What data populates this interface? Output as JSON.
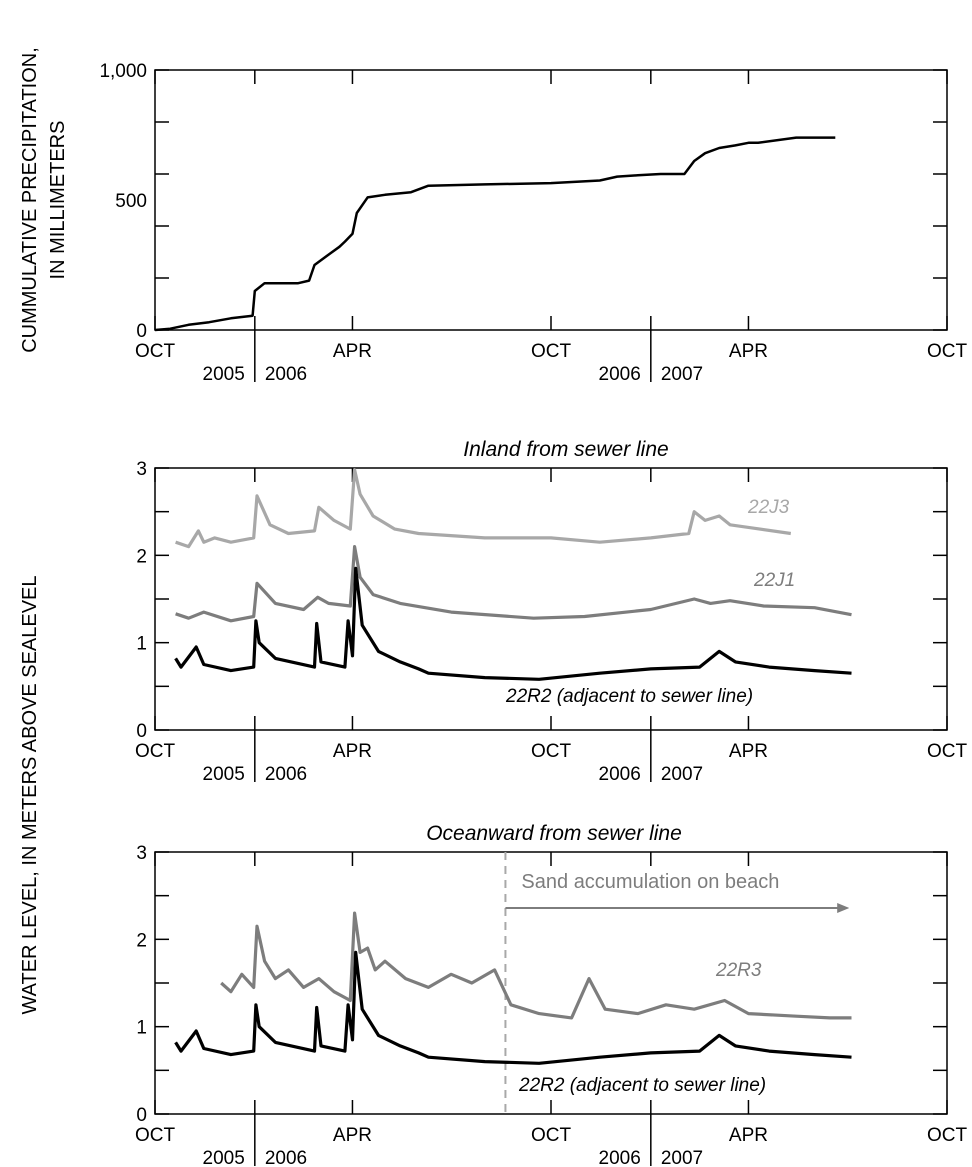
{
  "colors": {
    "black": "#000000",
    "gray_dark": "#6e6e6e",
    "gray_mid": "#7d7d7d",
    "gray_light": "#a8a8a8"
  },
  "ylabel_top": [
    "CUMMULATIVE PRECIPITATION,",
    "IN MILLIMETERS"
  ],
  "ylabel_shared": "WATER LEVEL, IN METERS ABOVE SEALEVEL",
  "chart_data": [
    {
      "type": "line",
      "title": "",
      "ylim": [
        0,
        1000
      ],
      "yticks": [
        0,
        500,
        1000
      ],
      "ytick_labels": [
        "0",
        "500",
        "1,000"
      ],
      "xlim": [
        "2005-10-01",
        "2007-10-01"
      ],
      "xtick_labels": [
        "OCT",
        "APR",
        "OCT",
        "APR",
        "OCT"
      ],
      "year_labels": [
        "2005",
        "2006",
        "2006",
        "2007"
      ],
      "series": [
        {
          "color": "#000000",
          "x": [
            "2005-10-01",
            "2005-10-15",
            "2005-11-01",
            "2005-11-20",
            "2005-12-10",
            "2005-12-30",
            "2006-01-01",
            "2006-01-10",
            "2006-02-10",
            "2006-02-20",
            "2006-02-25",
            "2006-03-10",
            "2006-03-20",
            "2006-03-25",
            "2006-04-01",
            "2006-04-05",
            "2006-04-15",
            "2006-05-01",
            "2006-05-25",
            "2006-06-10",
            "2006-08-01",
            "2006-10-01",
            "2006-11-15",
            "2006-12-01",
            "2006-12-20",
            "2007-01-10",
            "2007-02-01",
            "2007-02-10",
            "2007-02-20",
            "2007-03-05",
            "2007-03-20",
            "2007-04-01",
            "2007-04-10",
            "2007-05-15",
            "2007-06-20"
          ],
          "y": [
            0,
            5,
            20,
            30,
            45,
            55,
            150,
            180,
            180,
            190,
            250,
            290,
            320,
            340,
            370,
            450,
            510,
            520,
            530,
            555,
            560,
            565,
            575,
            590,
            595,
            600,
            600,
            650,
            680,
            700,
            710,
            720,
            720,
            740,
            740
          ]
        }
      ]
    },
    {
      "type": "line",
      "title": "Inland from sewer line",
      "ylim": [
        0,
        3
      ],
      "yticks": [
        0,
        1,
        2,
        3
      ],
      "ytick_labels": [
        "0",
        "1",
        "2",
        "3"
      ],
      "xlim": [
        "2005-10-01",
        "2007-10-01"
      ],
      "xtick_labels": [
        "OCT",
        "APR",
        "OCT",
        "APR",
        "OCT"
      ],
      "year_labels": [
        "2005",
        "2006",
        "2006",
        "2007"
      ],
      "series": [
        {
          "name": "22J3",
          "color": "#a8a8a8",
          "x": [
            "2005-10-20",
            "2005-11-01",
            "2005-11-10",
            "2005-11-15",
            "2005-11-25",
            "2005-12-10",
            "2005-12-31",
            "2006-01-03",
            "2006-01-15",
            "2006-02-01",
            "2006-02-25",
            "2006-03-01",
            "2006-03-15",
            "2006-03-30",
            "2006-04-03",
            "2006-04-08",
            "2006-04-20",
            "2006-05-10",
            "2006-06-01",
            "2006-08-01",
            "2006-10-01",
            "2006-11-15",
            "2007-01-01",
            "2007-02-05",
            "2007-02-10",
            "2007-02-20",
            "2007-03-05",
            "2007-03-15",
            "2007-04-01",
            "2007-05-10"
          ],
          "y": [
            2.15,
            2.1,
            2.28,
            2.15,
            2.2,
            2.15,
            2.2,
            2.68,
            2.35,
            2.25,
            2.28,
            2.55,
            2.4,
            2.3,
            2.98,
            2.7,
            2.45,
            2.3,
            2.25,
            2.2,
            2.2,
            2.15,
            2.2,
            2.25,
            2.5,
            2.4,
            2.45,
            2.35,
            2.32,
            2.25
          ]
        },
        {
          "name": "22J1",
          "color": "#7d7d7d",
          "x": [
            "2005-10-20",
            "2005-11-01",
            "2005-11-15",
            "2005-12-10",
            "2005-12-31",
            "2006-01-03",
            "2006-01-20",
            "2006-02-15",
            "2006-02-28",
            "2006-03-10",
            "2006-03-30",
            "2006-04-03",
            "2006-04-08",
            "2006-04-20",
            "2006-05-15",
            "2006-07-01",
            "2006-09-15",
            "2006-11-01",
            "2007-01-01",
            "2007-02-10",
            "2007-02-25",
            "2007-03-15",
            "2007-04-15",
            "2007-06-01",
            "2007-07-05"
          ],
          "y": [
            1.33,
            1.28,
            1.35,
            1.25,
            1.3,
            1.68,
            1.45,
            1.38,
            1.52,
            1.45,
            1.42,
            2.1,
            1.75,
            1.55,
            1.45,
            1.35,
            1.28,
            1.3,
            1.38,
            1.5,
            1.45,
            1.48,
            1.42,
            1.4,
            1.32
          ]
        },
        {
          "name": "22R2 (adjacent to sewer line)",
          "color": "#000000",
          "x": [
            "2005-10-20",
            "2005-10-25",
            "2005-11-08",
            "2005-11-15",
            "2005-12-10",
            "2005-12-31",
            "2006-01-02",
            "2006-01-05",
            "2006-01-20",
            "2006-02-25",
            "2006-02-27",
            "2006-03-03",
            "2006-03-25",
            "2006-03-28",
            "2006-04-01",
            "2006-04-04",
            "2006-04-10",
            "2006-04-25",
            "2006-05-15",
            "2006-06-01",
            "2006-06-10",
            "2006-08-01",
            "2006-09-20",
            "2006-11-15",
            "2007-01-01",
            "2007-02-15",
            "2007-03-05",
            "2007-03-20",
            "2007-04-20",
            "2007-06-01",
            "2007-07-05"
          ],
          "y": [
            0.82,
            0.72,
            0.95,
            0.75,
            0.68,
            0.72,
            1.25,
            1.0,
            0.82,
            0.72,
            1.22,
            0.78,
            0.72,
            1.25,
            0.85,
            1.85,
            1.2,
            0.9,
            0.78,
            0.7,
            0.65,
            0.6,
            0.58,
            0.65,
            0.7,
            0.72,
            0.9,
            0.78,
            0.72,
            0.68,
            0.65
          ]
        }
      ]
    },
    {
      "type": "line",
      "title": "Oceanward from sewer line",
      "ylim": [
        0,
        3
      ],
      "yticks": [
        0,
        1,
        2,
        3
      ],
      "ytick_labels": [
        "0",
        "1",
        "2",
        "3"
      ],
      "xlim": [
        "2005-10-01",
        "2007-10-01"
      ],
      "xtick_labels": [
        "OCT",
        "APR",
        "OCT",
        "APR",
        "OCT"
      ],
      "year_labels": [
        "2005",
        "2006",
        "2006",
        "2007"
      ],
      "annotation": {
        "text": "Sand accumulation on beach",
        "x_start": "2006-08-20",
        "x_end": "2007-07-01"
      },
      "series": [
        {
          "name": "22R3",
          "color": "#7d7d7d",
          "x": [
            "2005-12-01",
            "2005-12-10",
            "2005-12-20",
            "2005-12-31",
            "2006-01-03",
            "2006-01-10",
            "2006-01-20",
            "2006-02-01",
            "2006-02-15",
            "2006-03-01",
            "2006-03-15",
            "2006-03-30",
            "2006-04-03",
            "2006-04-08",
            "2006-04-15",
            "2006-04-22",
            "2006-05-01",
            "2006-05-20",
            "2006-06-10",
            "2006-07-01",
            "2006-07-20",
            "2006-08-10",
            "2006-08-25",
            "2006-09-20",
            "2006-10-20",
            "2006-11-05",
            "2006-11-20",
            "2006-12-20",
            "2007-01-15",
            "2007-02-10",
            "2007-03-10",
            "2007-04-01",
            "2007-05-15",
            "2007-06-15",
            "2007-07-05"
          ],
          "y": [
            1.5,
            1.4,
            1.6,
            1.45,
            2.15,
            1.75,
            1.55,
            1.65,
            1.45,
            1.55,
            1.4,
            1.3,
            2.3,
            1.85,
            1.9,
            1.65,
            1.75,
            1.55,
            1.45,
            1.6,
            1.5,
            1.65,
            1.25,
            1.15,
            1.1,
            1.55,
            1.2,
            1.15,
            1.25,
            1.2,
            1.3,
            1.15,
            1.12,
            1.1,
            1.1
          ]
        },
        {
          "name": "22R2 (adjacent to sewer line)",
          "color": "#000000",
          "x": [
            "2005-10-20",
            "2005-10-25",
            "2005-11-08",
            "2005-11-15",
            "2005-12-10",
            "2005-12-31",
            "2006-01-02",
            "2006-01-05",
            "2006-01-20",
            "2006-02-25",
            "2006-02-27",
            "2006-03-03",
            "2006-03-25",
            "2006-03-28",
            "2006-04-01",
            "2006-04-04",
            "2006-04-10",
            "2006-04-25",
            "2006-05-15",
            "2006-06-01",
            "2006-06-10",
            "2006-08-01",
            "2006-09-20",
            "2006-11-15",
            "2007-01-01",
            "2007-02-15",
            "2007-03-05",
            "2007-03-20",
            "2007-04-20",
            "2007-06-01",
            "2007-07-05"
          ],
          "y": [
            0.82,
            0.72,
            0.95,
            0.75,
            0.68,
            0.72,
            1.25,
            1.0,
            0.82,
            0.72,
            1.22,
            0.78,
            0.72,
            1.25,
            0.85,
            1.85,
            1.2,
            0.9,
            0.78,
            0.7,
            0.65,
            0.6,
            0.58,
            0.65,
            0.7,
            0.72,
            0.9,
            0.78,
            0.72,
            0.68,
            0.65
          ]
        }
      ]
    }
  ]
}
